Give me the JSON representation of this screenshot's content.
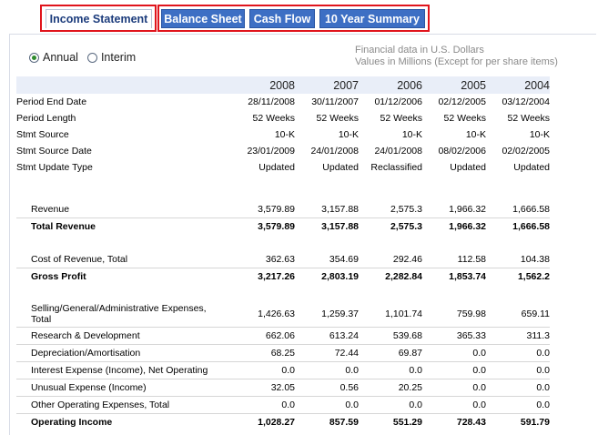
{
  "tabs": [
    {
      "label": "Income Statement",
      "active": true
    },
    {
      "label": "Balance Sheet",
      "active": false
    },
    {
      "label": "Cash Flow",
      "active": false
    },
    {
      "label": "10 Year Summary",
      "active": false
    }
  ],
  "view": {
    "annual_label": "Annual",
    "interim_label": "Interim",
    "selected": "Annual"
  },
  "notes": {
    "line1": "Financial data in U.S. Dollars",
    "line2": "Values in Millions (Except for per share items)"
  },
  "years": [
    "2008",
    "2007",
    "2006",
    "2005",
    "2004"
  ],
  "meta_rows": [
    {
      "label": "Period End Date",
      "values": [
        "28/11/2008",
        "30/11/2007",
        "01/12/2006",
        "02/12/2005",
        "03/12/2004"
      ]
    },
    {
      "label": "Period Length",
      "values": [
        "52 Weeks",
        "52 Weeks",
        "52 Weeks",
        "52 Weeks",
        "52 Weeks"
      ]
    },
    {
      "label": "Stmt Source",
      "values": [
        "10-K",
        "10-K",
        "10-K",
        "10-K",
        "10-K"
      ]
    },
    {
      "label": "Stmt Source Date",
      "values": [
        "23/01/2009",
        "24/01/2008",
        "24/01/2008",
        "08/02/2006",
        "02/02/2005"
      ]
    },
    {
      "label": "Stmt Update Type",
      "values": [
        "Updated",
        "Updated",
        "Reclassified",
        "Updated",
        "Updated"
      ]
    }
  ],
  "sections": [
    {
      "label": "Revenue",
      "values": [
        "3,579.89",
        "3,157.88",
        "2,575.3",
        "1,966.32",
        "1,666.58"
      ],
      "kind": "detail"
    },
    {
      "label": "Total Revenue",
      "values": [
        "3,579.89",
        "3,157.88",
        "2,575.3",
        "1,966.32",
        "1,666.58"
      ],
      "kind": "total"
    },
    {
      "label": "Cost of Revenue, Total",
      "values": [
        "362.63",
        "354.69",
        "292.46",
        "112.58",
        "104.38"
      ],
      "kind": "detail"
    },
    {
      "label": "Gross Profit",
      "values": [
        "3,217.26",
        "2,803.19",
        "2,282.84",
        "1,853.74",
        "1,562.2"
      ],
      "kind": "total"
    },
    {
      "label": "Selling/General/Administrative Expenses, Total",
      "values": [
        "1,426.63",
        "1,259.37",
        "1,101.74",
        "759.98",
        "659.11"
      ],
      "kind": "detail"
    },
    {
      "label": "Research & Development",
      "values": [
        "662.06",
        "613.24",
        "539.68",
        "365.33",
        "311.3"
      ],
      "kind": "detail"
    },
    {
      "label": "Depreciation/Amortisation",
      "values": [
        "68.25",
        "72.44",
        "69.87",
        "0.0",
        "0.0"
      ],
      "kind": "detail"
    },
    {
      "label": "Interest Expense (Income), Net Operating",
      "values": [
        "0.0",
        "0.0",
        "0.0",
        "0.0",
        "0.0"
      ],
      "kind": "detail"
    },
    {
      "label": "Unusual Expense (Income)",
      "values": [
        "32.05",
        "0.56",
        "20.25",
        "0.0",
        "0.0"
      ],
      "kind": "detail"
    },
    {
      "label": "Other Operating Expenses, Total",
      "values": [
        "0.0",
        "0.0",
        "0.0",
        "0.0",
        "0.0"
      ],
      "kind": "detail"
    },
    {
      "label": "Operating Income",
      "values": [
        "1,028.27",
        "857.59",
        "551.29",
        "728.43",
        "591.79"
      ],
      "kind": "total"
    }
  ]
}
